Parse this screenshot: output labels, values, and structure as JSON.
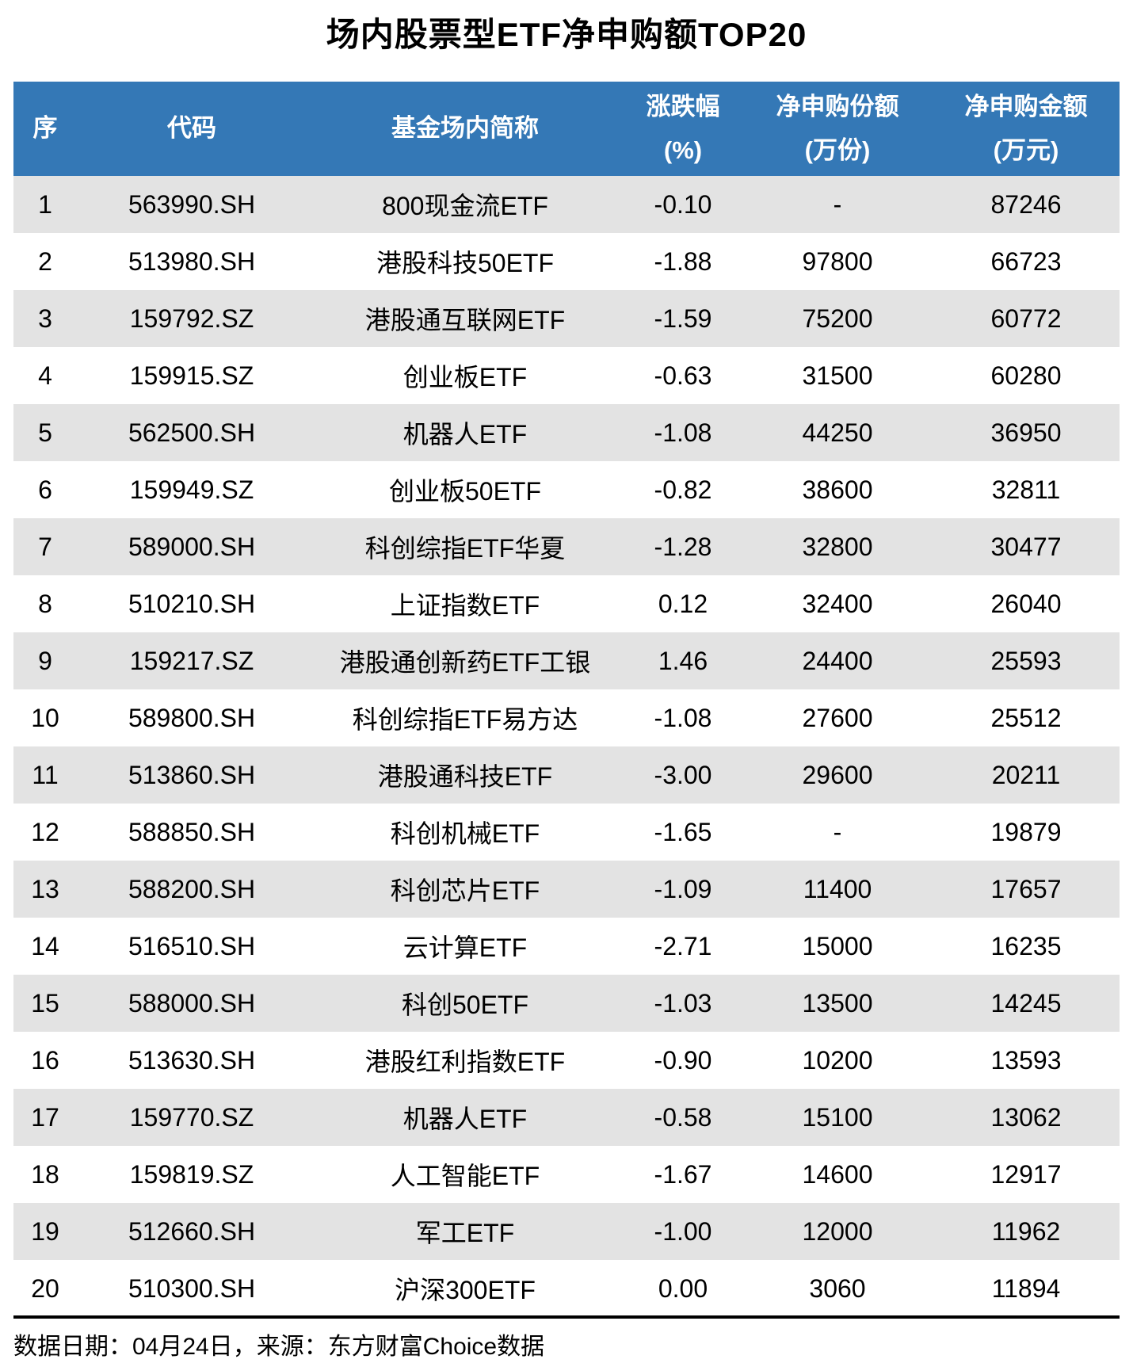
{
  "title": "场内股票型ETF净申购额TOP20",
  "footer_note": "数据日期：04月24日，来源：东方财富Choice数据",
  "colors": {
    "header_bg": "#3478B6",
    "header_text": "#FFFFFF",
    "row_alt": "#E3E3E3",
    "divider": "#000000"
  },
  "chart_data": {
    "type": "table",
    "title": "场内股票型ETF净申购额TOP20",
    "columns": [
      {
        "label": "序",
        "sub": ""
      },
      {
        "label": "代码",
        "sub": ""
      },
      {
        "label": "基金场内简称",
        "sub": ""
      },
      {
        "label": "涨跌幅",
        "sub": "(%)"
      },
      {
        "label": "净申购份额",
        "sub": "(万份)"
      },
      {
        "label": "净申购金额",
        "sub": "(万元)"
      }
    ],
    "rows": [
      {
        "rank": "1",
        "code": "563990.SH",
        "name": "800现金流ETF",
        "change": "-0.10",
        "shares": "-",
        "amount": "87246"
      },
      {
        "rank": "2",
        "code": "513980.SH",
        "name": "港股科技50ETF",
        "change": "-1.88",
        "shares": "97800",
        "amount": "66723"
      },
      {
        "rank": "3",
        "code": "159792.SZ",
        "name": "港股通互联网ETF",
        "change": "-1.59",
        "shares": "75200",
        "amount": "60772"
      },
      {
        "rank": "4",
        "code": "159915.SZ",
        "name": "创业板ETF",
        "change": "-0.63",
        "shares": "31500",
        "amount": "60280"
      },
      {
        "rank": "5",
        "code": "562500.SH",
        "name": "机器人ETF",
        "change": "-1.08",
        "shares": "44250",
        "amount": "36950"
      },
      {
        "rank": "6",
        "code": "159949.SZ",
        "name": "创业板50ETF",
        "change": "-0.82",
        "shares": "38600",
        "amount": "32811"
      },
      {
        "rank": "7",
        "code": "589000.SH",
        "name": "科创综指ETF华夏",
        "change": "-1.28",
        "shares": "32800",
        "amount": "30477"
      },
      {
        "rank": "8",
        "code": "510210.SH",
        "name": "上证指数ETF",
        "change": "0.12",
        "shares": "32400",
        "amount": "26040"
      },
      {
        "rank": "9",
        "code": "159217.SZ",
        "name": "港股通创新药ETF工银",
        "change": "1.46",
        "shares": "24400",
        "amount": "25593"
      },
      {
        "rank": "10",
        "code": "589800.SH",
        "name": "科创综指ETF易方达",
        "change": "-1.08",
        "shares": "27600",
        "amount": "25512"
      },
      {
        "rank": "11",
        "code": "513860.SH",
        "name": "港股通科技ETF",
        "change": "-3.00",
        "shares": "29600",
        "amount": "20211"
      },
      {
        "rank": "12",
        "code": "588850.SH",
        "name": "科创机械ETF",
        "change": "-1.65",
        "shares": "-",
        "amount": "19879"
      },
      {
        "rank": "13",
        "code": "588200.SH",
        "name": "科创芯片ETF",
        "change": "-1.09",
        "shares": "11400",
        "amount": "17657"
      },
      {
        "rank": "14",
        "code": "516510.SH",
        "name": "云计算ETF",
        "change": "-2.71",
        "shares": "15000",
        "amount": "16235"
      },
      {
        "rank": "15",
        "code": "588000.SH",
        "name": "科创50ETF",
        "change": "-1.03",
        "shares": "13500",
        "amount": "14245"
      },
      {
        "rank": "16",
        "code": "513630.SH",
        "name": "港股红利指数ETF",
        "change": "-0.90",
        "shares": "10200",
        "amount": "13593"
      },
      {
        "rank": "17",
        "code": "159770.SZ",
        "name": "机器人ETF",
        "change": "-0.58",
        "shares": "15100",
        "amount": "13062"
      },
      {
        "rank": "18",
        "code": "159819.SZ",
        "name": "人工智能ETF",
        "change": "-1.67",
        "shares": "14600",
        "amount": "12917"
      },
      {
        "rank": "19",
        "code": "512660.SH",
        "name": "军工ETF",
        "change": "-1.00",
        "shares": "12000",
        "amount": "11962"
      },
      {
        "rank": "20",
        "code": "510300.SH",
        "name": "沪深300ETF",
        "change": "0.00",
        "shares": "3060",
        "amount": "11894"
      }
    ]
  }
}
